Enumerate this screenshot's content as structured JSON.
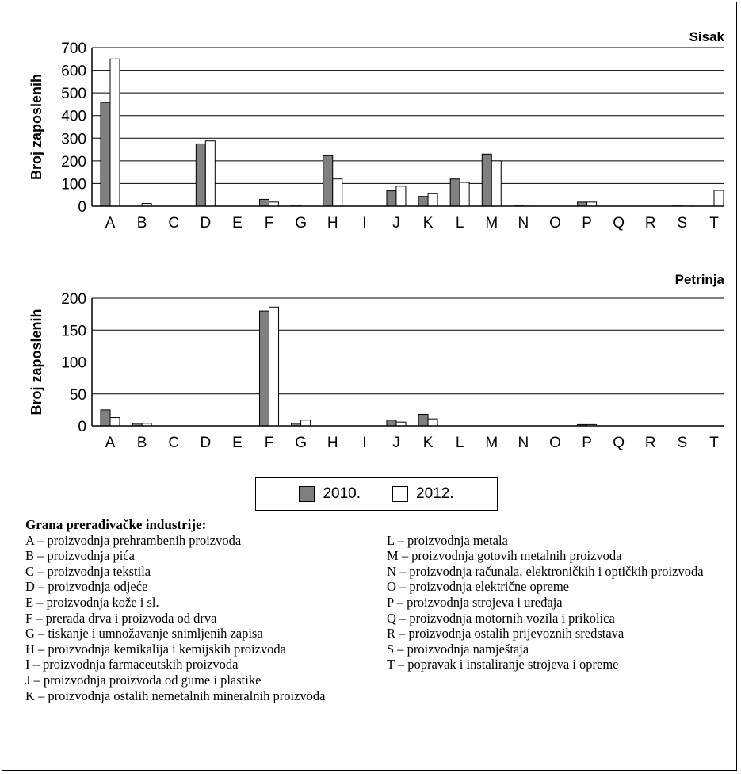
{
  "colors": {
    "s2010": "#808080",
    "s2012": "#ffffff",
    "stroke": "#000000"
  },
  "chart_data": [
    {
      "type": "bar",
      "title": "Sisak",
      "ylabel": "Broj zaposlenih",
      "xlabel": "",
      "ylim": [
        0,
        700
      ],
      "yticks": [
        0,
        100,
        200,
        300,
        400,
        500,
        600,
        700
      ],
      "grid": true,
      "categories": [
        "A",
        "B",
        "C",
        "D",
        "E",
        "F",
        "G",
        "H",
        "I",
        "J",
        "K",
        "L",
        "M",
        "N",
        "O",
        "P",
        "Q",
        "R",
        "S",
        "T"
      ],
      "series": [
        {
          "name": "2010.",
          "values": [
            458,
            0,
            0,
            275,
            0,
            30,
            5,
            223,
            0,
            68,
            43,
            120,
            230,
            5,
            0,
            18,
            0,
            0,
            5,
            0
          ]
        },
        {
          "name": "2012.",
          "values": [
            650,
            12,
            0,
            288,
            0,
            18,
            0,
            120,
            0,
            88,
            57,
            105,
            200,
            5,
            0,
            18,
            0,
            0,
            5,
            70
          ]
        }
      ]
    },
    {
      "type": "bar",
      "title": "Petrinja",
      "ylabel": "Broj zaposlenih",
      "xlabel": "",
      "ylim": [
        0,
        200
      ],
      "yticks": [
        0,
        50,
        100,
        150,
        200
      ],
      "grid": true,
      "categories": [
        "A",
        "B",
        "C",
        "D",
        "E",
        "F",
        "G",
        "H",
        "I",
        "J",
        "K",
        "L",
        "M",
        "N",
        "O",
        "P",
        "Q",
        "R",
        "S",
        "T"
      ],
      "series": [
        {
          "name": "2010.",
          "values": [
            25,
            4,
            0,
            0,
            0,
            180,
            4,
            0,
            0,
            9,
            18,
            0,
            0,
            0,
            0,
            2,
            0,
            0,
            0,
            0
          ]
        },
        {
          "name": "2012.",
          "values": [
            13,
            4,
            0,
            0,
            0,
            186,
            9,
            0,
            0,
            6,
            11,
            0,
            0,
            0,
            0,
            2,
            0,
            0,
            0,
            0
          ]
        }
      ]
    }
  ],
  "legend": {
    "label_2010": "2010.",
    "label_2012": "2012."
  },
  "notes": {
    "title": "Grana prerađivačke industrije:",
    "left": [
      "A – proizvodnja prehrambenih proizvoda",
      "B – proizvodnja pića",
      "C – proizvodnja tekstila",
      "D – proizvodnja odjeće",
      "E – proizvodnja kože i sl.",
      "F – prerada drva i proizvoda od drva",
      "G – tiskanje i umnožavanje snimljenih zapisa",
      "H – proizvodnja kemikalija i kemijskih proizvoda",
      "I – proizvodnja farmaceutskih proizvoda",
      "J – proizvodnja proizvoda od gume i plastike",
      "K – proizvodnja ostalih nemetalnih mineralnih proizvoda"
    ],
    "right": [
      "L – proizvodnja metala",
      "M – proizvodnja gotovih metalnih proizvoda",
      "N – proizvodnja računala, elektroničkih i optičkih proizvoda",
      "O – proizvodnja električne opreme",
      "P – proizvodnja strojeva i uređaja",
      "Q – proizvodnja motornih vozila i prikolica",
      "R – proizvodnja ostalih prijevoznih sredstava",
      "S – proizvodnja namještaja",
      "T – popravak i instaliranje strojeva i opreme"
    ]
  }
}
